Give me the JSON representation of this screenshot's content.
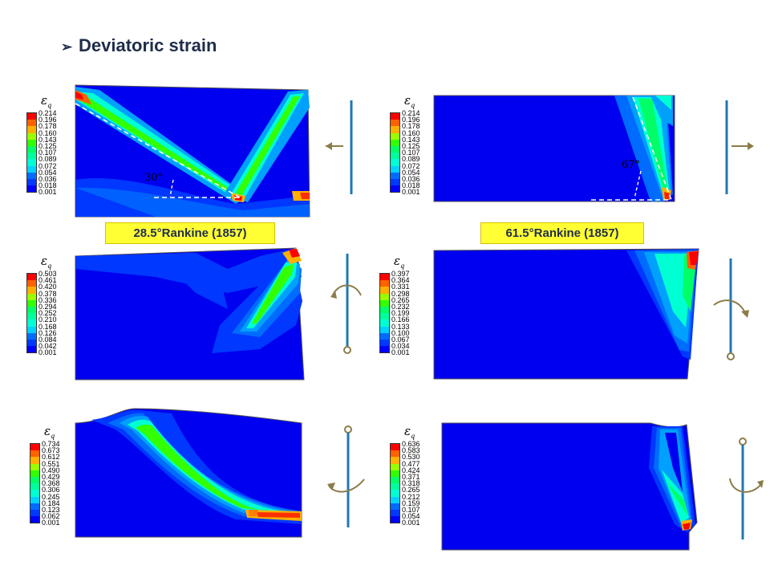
{
  "slide": {
    "title": "Deviatoric strain",
    "bullet_icon": "arrow-bullet-icon"
  },
  "legend_symbol": {
    "base": "ε",
    "subscript": "q"
  },
  "colormap": [
    "#0000ff",
    "#0038ff",
    "#006cff",
    "#00a0ff",
    "#00d2ff",
    "#00ffd2",
    "#00ff9c",
    "#00ff66",
    "#33ff00",
    "#99ff00",
    "#e6f200",
    "#ffb000",
    "#ff6000",
    "#ff0000"
  ],
  "panels": [
    {
      "id": "p1",
      "legend_values": [
        "0.214",
        "0.196",
        "0.178",
        "0.160",
        "0.143",
        "0.125",
        "0.107",
        "0.089",
        "0.072",
        "0.054",
        "0.036",
        "0.018",
        "0.001"
      ],
      "caption": "28.5°Rankine (1857)",
      "angle": "30°",
      "motion": "translate-left"
    },
    {
      "id": "p2",
      "legend_values": [
        "0.214",
        "0.196",
        "0.178",
        "0.160",
        "0.143",
        "0.125",
        "0.107",
        "0.089",
        "0.072",
        "0.054",
        "0.036",
        "0.018",
        "0.001"
      ],
      "caption": "61.5°Rankine (1857)",
      "angle": "67°",
      "motion": "translate-right"
    },
    {
      "id": "p3",
      "legend_values": [
        "0.503",
        "0.461",
        "0.420",
        "0.378",
        "0.336",
        "0.294",
        "0.252",
        "0.210",
        "0.168",
        "0.126",
        "0.084",
        "0.042",
        "0.001"
      ],
      "motion": "rotate-top"
    },
    {
      "id": "p4",
      "legend_values": [
        "0.397",
        "0.364",
        "0.331",
        "0.298",
        "0.265",
        "0.232",
        "0.199",
        "0.166",
        "0.133",
        "0.100",
        "0.067",
        "0.034",
        "0.001"
      ],
      "motion": "rotate-top"
    },
    {
      "id": "p5",
      "legend_values": [
        "0.734",
        "0.673",
        "0.612",
        "0.551",
        "0.490",
        "0.429",
        "0.368",
        "0.306",
        "0.245",
        "0.184",
        "0.123",
        "0.062",
        "0.001"
      ],
      "motion": "rotate-bottom"
    },
    {
      "id": "p6",
      "legend_values": [
        "0.636",
        "0.583",
        "0.530",
        "0.477",
        "0.424",
        "0.371",
        "0.318",
        "0.265",
        "0.212",
        "0.159",
        "0.107",
        "0.054",
        "0.001"
      ],
      "motion": "rotate-bottom"
    }
  ]
}
